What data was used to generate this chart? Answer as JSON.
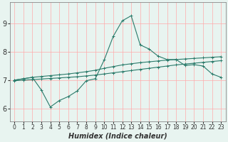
{
  "xlabel": "Humidex (Indice chaleur)",
  "ylabel": "",
  "bg_color": "#e8f4f0",
  "line_color": "#2a7a6a",
  "grid_color": "#ffaaaa",
  "xlim": [
    -0.5,
    23.5
  ],
  "ylim": [
    5.55,
    9.75
  ],
  "yticks": [
    6,
    7,
    8,
    9
  ],
  "xticks": [
    0,
    1,
    2,
    3,
    4,
    5,
    6,
    7,
    8,
    9,
    10,
    11,
    12,
    13,
    14,
    15,
    16,
    17,
    18,
    19,
    20,
    21,
    22,
    23
  ],
  "line1_x": [
    0,
    1,
    2,
    3,
    4,
    5,
    6,
    7,
    8,
    9,
    10,
    11,
    12,
    13,
    14,
    15,
    16,
    17,
    18,
    19,
    20,
    21,
    22,
    23
  ],
  "line1_y": [
    7.0,
    7.05,
    7.1,
    7.13,
    7.16,
    7.19,
    7.22,
    7.26,
    7.3,
    7.35,
    7.42,
    7.48,
    7.54,
    7.58,
    7.62,
    7.65,
    7.68,
    7.71,
    7.73,
    7.75,
    7.77,
    7.79,
    7.81,
    7.83
  ],
  "line2_x": [
    0,
    1,
    2,
    3,
    4,
    5,
    6,
    7,
    8,
    9,
    10,
    11,
    12,
    13,
    14,
    15,
    16,
    17,
    18,
    19,
    20,
    21,
    22,
    23
  ],
  "line2_y": [
    7.0,
    7.05,
    7.1,
    6.65,
    6.05,
    6.28,
    6.42,
    6.62,
    6.98,
    7.05,
    7.72,
    8.55,
    9.1,
    9.28,
    8.25,
    8.1,
    7.85,
    7.73,
    7.73,
    7.52,
    7.55,
    7.5,
    7.22,
    7.1
  ],
  "line3_x": [
    0,
    1,
    2,
    3,
    4,
    5,
    6,
    7,
    8,
    9,
    10,
    11,
    12,
    13,
    14,
    15,
    16,
    17,
    18,
    19,
    20,
    21,
    22,
    23
  ],
  "line3_y": [
    6.98,
    7.0,
    7.02,
    7.04,
    7.06,
    7.08,
    7.1,
    7.12,
    7.15,
    7.18,
    7.22,
    7.26,
    7.3,
    7.34,
    7.38,
    7.42,
    7.46,
    7.5,
    7.54,
    7.57,
    7.6,
    7.63,
    7.66,
    7.69
  ],
  "xlabel_fontsize": 7,
  "tick_fontsize_x": 5.5,
  "tick_fontsize_y": 7,
  "linewidth": 0.8,
  "markersize": 2.5
}
